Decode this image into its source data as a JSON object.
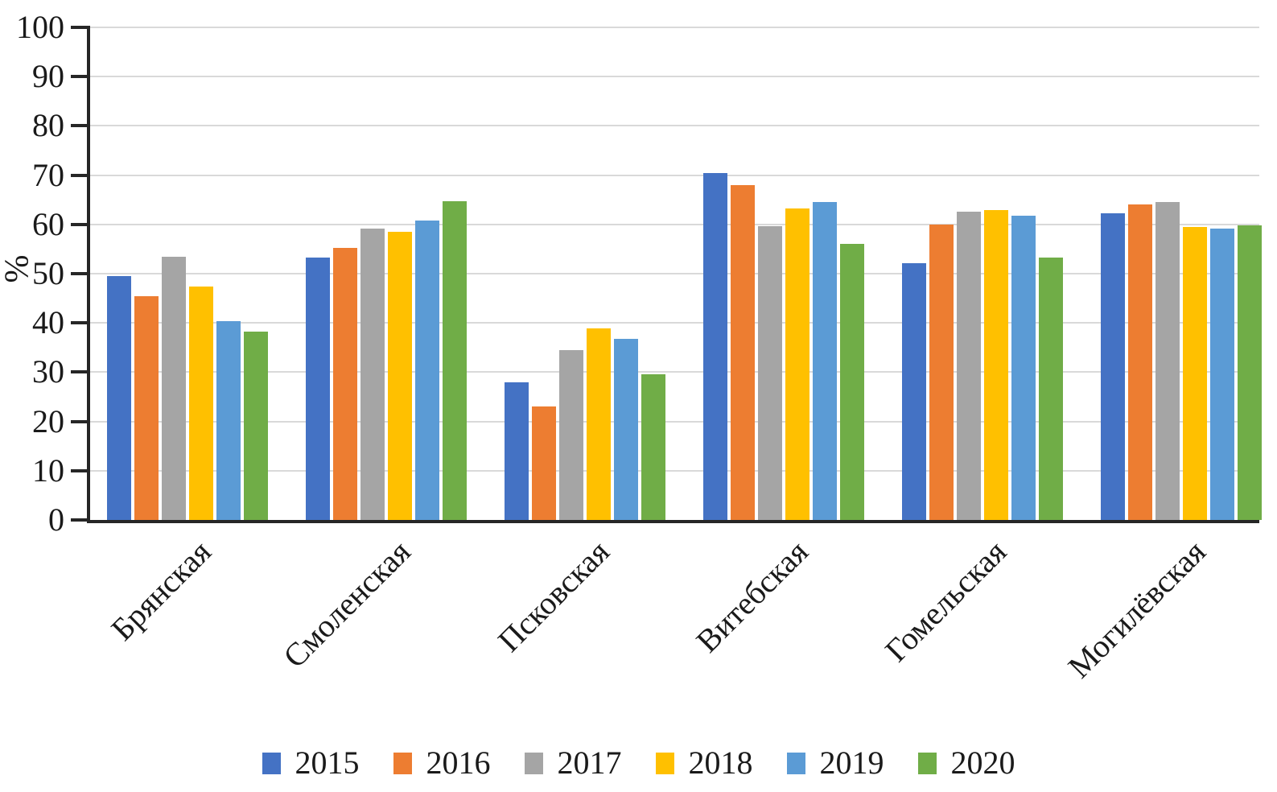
{
  "chart_data": {
    "type": "bar",
    "title": "",
    "ylabel": "%",
    "xlabel": "",
    "grid": true,
    "legend_position": "bottom",
    "y_axis": {
      "min": 0,
      "max": 100,
      "step": 10,
      "tick_labels": [
        "0",
        "10",
        "20",
        "30",
        "40",
        "50",
        "60",
        "70",
        "80",
        "90",
        "100"
      ]
    },
    "categories": [
      "Брянская",
      "Смоленская",
      "Псковская",
      "Витебская",
      "Гомельская",
      "Могилёвская"
    ],
    "series": [
      {
        "name": "2015",
        "color": "#4472C4",
        "values": [
          49.5,
          53.2,
          28.0,
          70.5,
          52.2,
          62.3
        ]
      },
      {
        "name": "2016",
        "color": "#ED7D31",
        "values": [
          45.4,
          55.3,
          23.0,
          68.0,
          59.9,
          64.1
        ]
      },
      {
        "name": "2017",
        "color": "#A5A5A5",
        "values": [
          53.4,
          59.1,
          34.4,
          59.6,
          62.6,
          64.6
        ]
      },
      {
        "name": "2018",
        "color": "#FFC000",
        "values": [
          47.4,
          58.5,
          38.9,
          63.3,
          62.9,
          59.4
        ]
      },
      {
        "name": "2019",
        "color": "#5B9BD5",
        "values": [
          40.3,
          60.8,
          36.8,
          64.5,
          61.8,
          59.2
        ]
      },
      {
        "name": "2020",
        "color": "#70AD47",
        "values": [
          38.2,
          64.7,
          29.5,
          56.0,
          53.3,
          59.8
        ]
      }
    ],
    "colors": {
      "gridline": "#d9d9d9",
      "axis": "#262626",
      "text": "#1a1a1a"
    }
  }
}
